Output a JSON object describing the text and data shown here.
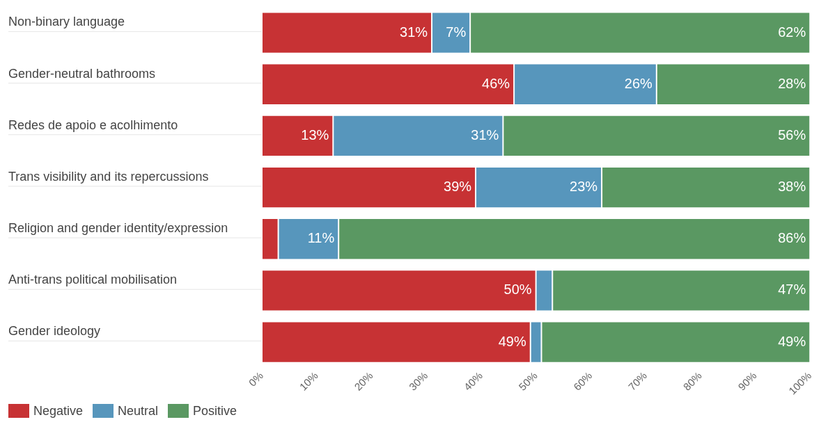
{
  "chart_data": {
    "type": "bar",
    "orientation": "horizontal",
    "stacked": true,
    "categories": [
      "Non-binary language",
      "Gender-neutral bathrooms",
      "Redes de apoio e acolhimento",
      "Trans visibility and its repercussions",
      "Religion and gender identity/expression",
      "Anti-trans political mobilisation",
      "Gender ideology"
    ],
    "series": [
      {
        "name": "Negative",
        "color": "#c73234",
        "values": [
          31,
          46,
          13,
          39,
          3,
          50,
          49
        ],
        "value_labels": [
          "31%",
          "46%",
          "13%",
          "39%",
          null,
          "50%",
          "49%"
        ]
      },
      {
        "name": "Neutral",
        "color": "#5796bc",
        "values": [
          7,
          26,
          31,
          23,
          11,
          3,
          2
        ],
        "value_labels": [
          "7%",
          "26%",
          "31%",
          "23%",
          "11%",
          null,
          null
        ]
      },
      {
        "name": "Positive",
        "color": "#5a9862",
        "values": [
          62,
          28,
          56,
          38,
          86,
          47,
          49
        ],
        "value_labels": [
          "62%",
          "28%",
          "56%",
          "38%",
          "86%",
          "47%",
          "49%"
        ]
      }
    ],
    "xlim": [
      0,
      100
    ],
    "xticks": [
      {
        "value": 0,
        "label": "0%"
      },
      {
        "value": 10,
        "label": "10%"
      },
      {
        "value": 20,
        "label": "20%"
      },
      {
        "value": 30,
        "label": "30%"
      },
      {
        "value": 40,
        "label": "40%"
      },
      {
        "value": 50,
        "label": "50%"
      },
      {
        "value": 60,
        "label": "60%"
      },
      {
        "value": 70,
        "label": "70%"
      },
      {
        "value": 80,
        "label": "80%"
      },
      {
        "value": 90,
        "label": "90%"
      },
      {
        "value": 100,
        "label": "100%"
      }
    ],
    "grid": false,
    "legend": "bottom left"
  }
}
